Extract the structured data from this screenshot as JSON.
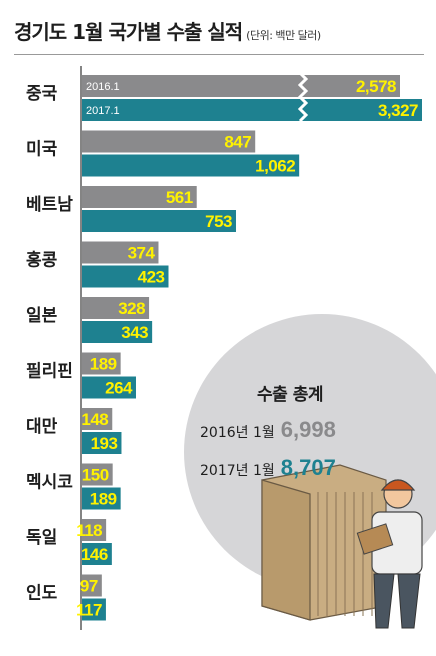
{
  "title": "경기도 1월 국가별 수출 실적",
  "unit": "(단위: 백만 달러)",
  "colors": {
    "series_2016": "#8a8a8c",
    "series_2017": "#1e8190",
    "label": "#fff200",
    "circle": "#d6d6d8"
  },
  "summary": {
    "title": "수출 총계",
    "rows": [
      {
        "label": "2016년 1월",
        "value": "6,998",
        "color": "#8a8a8c"
      },
      {
        "label": "2017년 1월",
        "value": "8,707",
        "color": "#1e8190"
      }
    ]
  },
  "chart_data": {
    "type": "bar",
    "orientation": "horizontal",
    "title": "경기도 1월 국가별 수출 실적",
    "unit": "(단위: 백만 달러)",
    "categories": [
      "중국",
      "미국",
      "베트남",
      "홍콩",
      "일본",
      "필리핀",
      "대만",
      "멕시코",
      "독일",
      "인도"
    ],
    "series": [
      {
        "name": "2016.1",
        "color": "#8a8a8c",
        "values": [
          2578,
          847,
          561,
          374,
          328,
          189,
          148,
          150,
          118,
          97
        ],
        "labels": [
          "2,578",
          "847",
          "561",
          "374",
          "328",
          "189",
          "148",
          "150",
          "118",
          "97"
        ]
      },
      {
        "name": "2017.1",
        "color": "#1e8190",
        "values": [
          3327,
          1062,
          753,
          423,
          343,
          264,
          193,
          189,
          146,
          117
        ],
        "labels": [
          "3,327",
          "1,062",
          "753",
          "423",
          "343",
          "264",
          "193",
          "189",
          "146",
          "117"
        ]
      }
    ],
    "axis_break": {
      "category": "중국"
    },
    "grid": false
  }
}
